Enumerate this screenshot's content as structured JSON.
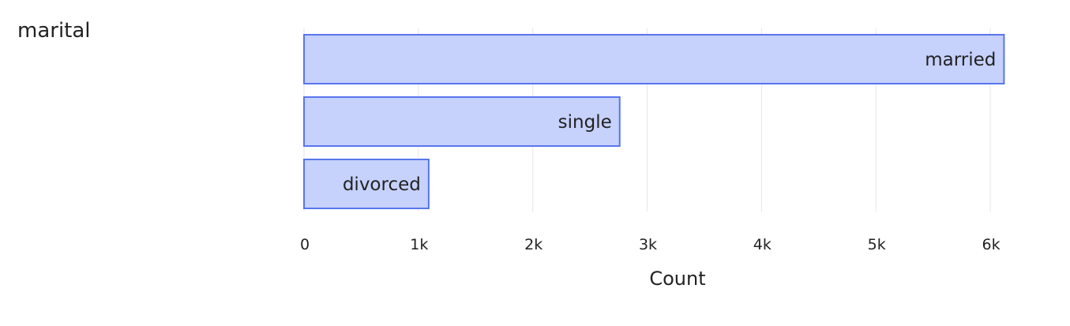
{
  "field_label": "marital",
  "colors": {
    "bar_fill": "#c6d1fc",
    "bar_stroke": "#5876ec",
    "grid": "#e6e6e6"
  },
  "chart_data": {
    "type": "bar",
    "orientation": "horizontal",
    "categories": [
      "married",
      "single",
      "divorced"
    ],
    "values": [
      6120,
      2760,
      1090
    ],
    "xlabel": "Count",
    "ylabel": "",
    "xlim": [
      0,
      6200
    ],
    "ticks": [
      {
        "value": 0,
        "label": "0"
      },
      {
        "value": 1000,
        "label": "1k"
      },
      {
        "value": 2000,
        "label": "2k"
      },
      {
        "value": 3000,
        "label": "3k"
      },
      {
        "value": 4000,
        "label": "4k"
      },
      {
        "value": 5000,
        "label": "5k"
      },
      {
        "value": 6000,
        "label": "6k"
      }
    ],
    "grid": true,
    "legend": "none"
  }
}
